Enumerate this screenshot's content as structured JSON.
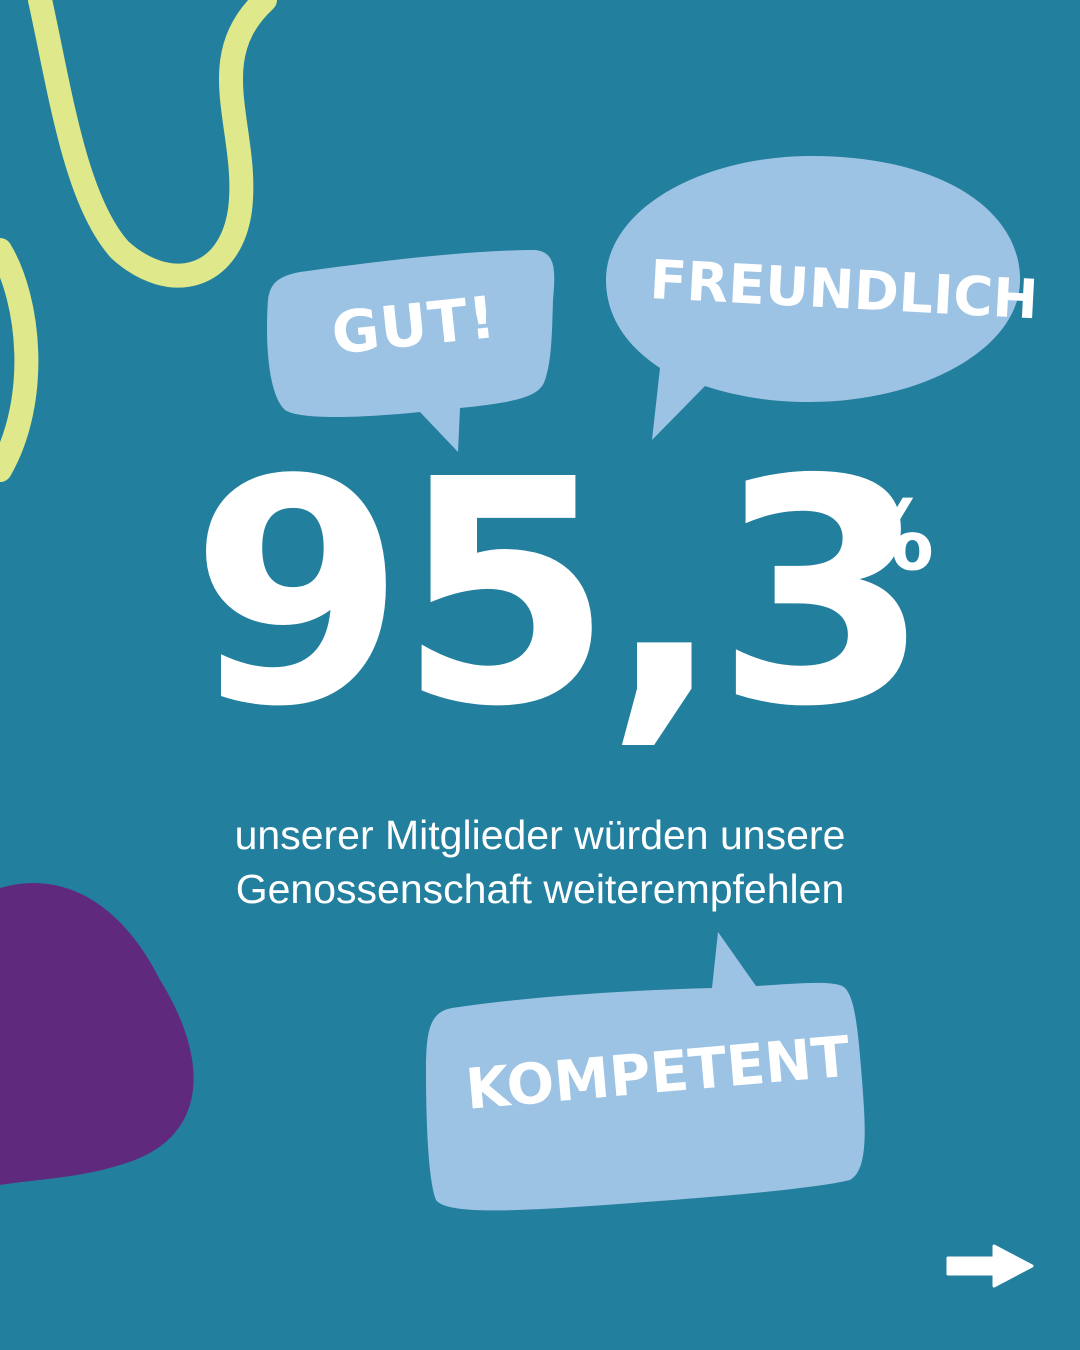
{
  "statistic": {
    "value": "95,3",
    "unit": "%"
  },
  "caption": {
    "line1": "unserer Mitglieder würden unsere",
    "line2": "Genossenschaft weiterempfehlen"
  },
  "speech_bubbles": [
    {
      "label": "GUT!"
    },
    {
      "label": "FREUNDLICH"
    },
    {
      "label": "KOMPETENT"
    }
  ],
  "navigation": {
    "next_icon": "arrow-right-icon"
  },
  "colors": {
    "background": "#237f9e",
    "bubble": "#9dc3e4",
    "squiggle": "#dfe88a",
    "blob": "#5f2a7d",
    "text": "#ffffff"
  }
}
